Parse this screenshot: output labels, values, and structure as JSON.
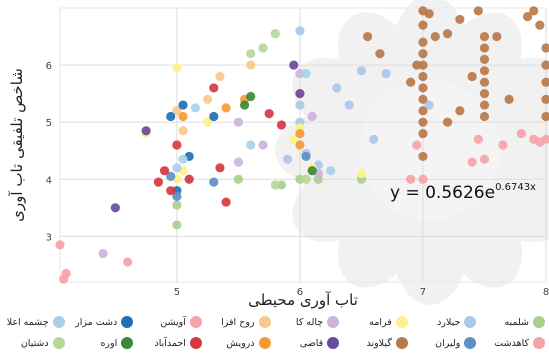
{
  "chart_data": {
    "type": "scatter",
    "title": "",
    "xlabel": "تاب آوری محیطی",
    "ylabel": "شاخص تلفیقی تاب آوری",
    "xlim": [
      4.05,
      8.0
    ],
    "ylim": [
      2.2,
      7.0
    ],
    "xticks": [
      5,
      6,
      7,
      8
    ],
    "yticks": [
      3,
      4,
      5,
      6
    ],
    "grid": true,
    "trendline": {
      "type": "exponential",
      "a": 0.5626,
      "b": 0.6743,
      "label_base": "y = 0.5626e",
      "label_exp": "0.6743x"
    },
    "series": [
      {
        "name": "شلمبه",
        "color": "#a8d08d",
        "points": [
          [
            5.0,
            3.55
          ],
          [
            5.0,
            3.2
          ],
          [
            5.85,
            3.9
          ],
          [
            6.5,
            4.0
          ],
          [
            6.0,
            4.0
          ],
          [
            5.5,
            4.0
          ],
          [
            6.15,
            4.0
          ]
        ]
      },
      {
        "name": "جیلارد",
        "color": "#a9c8e8",
        "points": [
          [
            5.9,
            4.35
          ],
          [
            6.0,
            6.6
          ],
          [
            6.0,
            5.0
          ],
          [
            6.0,
            5.3
          ],
          [
            6.3,
            5.6
          ],
          [
            6.5,
            5.9
          ],
          [
            6.6,
            4.7
          ],
          [
            6.7,
            5.85
          ],
          [
            6.05,
            4.45
          ],
          [
            6.15,
            4.25
          ],
          [
            6.4,
            5.3
          ],
          [
            7.05,
            5.3
          ]
        ]
      },
      {
        "name": "فرامه",
        "color": "#fff18a",
        "points": [
          [
            5.0,
            5.95
          ],
          [
            5.0,
            4.0
          ],
          [
            5.05,
            4.15
          ],
          [
            5.95,
            4.7
          ],
          [
            6.0,
            5.5
          ],
          [
            6.0,
            4.9
          ],
          [
            6.1,
            4.2
          ],
          [
            6.5,
            4.1
          ],
          [
            5.25,
            5.0
          ],
          [
            4.75,
            4.8
          ]
        ]
      },
      {
        "name": "چاله کا",
        "color": "#cdb4dc",
        "points": [
          [
            6.0,
            5.85
          ],
          [
            5.5,
            5.0
          ],
          [
            5.7,
            4.6
          ],
          [
            6.1,
            5.1
          ],
          [
            4.4,
            2.7
          ],
          [
            6.15,
            4.1
          ],
          [
            5.5,
            4.3
          ]
        ]
      },
      {
        "name": "روح افزا",
        "color": "#f8c98d",
        "points": [
          [
            5.0,
            5.2
          ],
          [
            5.6,
            6.0
          ],
          [
            5.25,
            5.4
          ],
          [
            5.35,
            5.8
          ],
          [
            5.05,
            4.85
          ]
        ]
      },
      {
        "name": "آویشن",
        "color": "#f5a3a8",
        "points": [
          [
            4.05,
            2.85
          ],
          [
            4.1,
            2.35
          ],
          [
            4.08,
            2.25
          ],
          [
            7.0,
            4.0
          ],
          [
            7.5,
            4.35
          ],
          [
            7.65,
            4.6
          ],
          [
            7.9,
            4.7
          ],
          [
            8.0,
            4.7
          ],
          [
            4.6,
            2.55
          ]
        ]
      },
      {
        "name": "دشت مزار",
        "color": "#1f6fb5",
        "points": [
          [
            5.0,
            3.8
          ],
          [
            5.1,
            4.4
          ],
          [
            4.95,
            5.1
          ],
          [
            5.3,
            5.1
          ],
          [
            5.05,
            5.3
          ]
        ]
      },
      {
        "name": "چشمه اعلا",
        "color": "#a8d0ea",
        "points": [
          [
            5.0,
            4.2
          ],
          [
            5.05,
            4.35
          ],
          [
            5.15,
            5.25
          ],
          [
            6.05,
            5.85
          ],
          [
            5.6,
            4.6
          ],
          [
            6.25,
            4.15
          ]
        ]
      },
      {
        "name": "کاهدشت",
        "color": "#f5a3a8",
        "points": [
          [
            6.9,
            4.0
          ],
          [
            6.95,
            4.6
          ],
          [
            7.4,
            4.3
          ],
          [
            7.45,
            4.7
          ],
          [
            7.8,
            4.8
          ],
          [
            7.95,
            4.65
          ]
        ]
      },
      {
        "name": "ولیران",
        "color": "#5a8fc8",
        "points": [
          [
            5.0,
            3.7
          ],
          [
            6.05,
            4.4
          ],
          [
            5.3,
            3.95
          ],
          [
            4.95,
            4.05
          ]
        ]
      },
      {
        "name": "گیلاوند",
        "color": "#b8794a",
        "points": [
          [
            6.9,
            5.7
          ],
          [
            6.95,
            6.0
          ],
          [
            7.0,
            6.95
          ],
          [
            7.0,
            6.7
          ],
          [
            7.0,
            6.4
          ],
          [
            7.0,
            6.2
          ],
          [
            7.0,
            6.0
          ],
          [
            7.0,
            5.8
          ],
          [
            7.0,
            5.6
          ],
          [
            7.0,
            5.4
          ],
          [
            7.0,
            5.2
          ],
          [
            7.0,
            5.0
          ],
          [
            7.0,
            4.8
          ],
          [
            7.0,
            4.4
          ],
          [
            7.05,
            6.9
          ],
          [
            7.1,
            6.5
          ],
          [
            7.2,
            6.55
          ],
          [
            7.3,
            6.8
          ],
          [
            7.45,
            6.95
          ],
          [
            7.5,
            6.5
          ],
          [
            7.5,
            6.3
          ],
          [
            7.5,
            6.1
          ],
          [
            7.5,
            5.9
          ],
          [
            7.5,
            5.7
          ],
          [
            7.5,
            5.5
          ],
          [
            7.5,
            5.3
          ],
          [
            7.5,
            5.1
          ],
          [
            7.6,
            6.5
          ],
          [
            7.85,
            6.85
          ],
          [
            7.9,
            6.95
          ],
          [
            8.0,
            6.3
          ],
          [
            8.0,
            6.0
          ],
          [
            8.0,
            5.7
          ],
          [
            8.0,
            5.4
          ],
          [
            8.0,
            5.1
          ],
          [
            6.55,
            6.5
          ],
          [
            6.65,
            6.2
          ],
          [
            7.2,
            5.0
          ],
          [
            7.3,
            5.2
          ],
          [
            7.4,
            5.8
          ],
          [
            7.7,
            5.4
          ],
          [
            7.95,
            6.7
          ]
        ]
      },
      {
        "name": "قاضی",
        "color": "#6a4a9c",
        "points": [
          [
            4.5,
            3.5
          ],
          [
            4.75,
            4.85
          ],
          [
            6.0,
            5.5
          ],
          [
            5.95,
            6.0
          ]
        ]
      },
      {
        "name": "درویش",
        "color": "#f59a3a",
        "points": [
          [
            5.05,
            5.1
          ],
          [
            5.55,
            5.4
          ],
          [
            6.0,
            4.8
          ],
          [
            6.0,
            4.6
          ],
          [
            5.4,
            5.25
          ]
        ]
      },
      {
        "name": "احمدآباد",
        "color": "#d43a3f",
        "points": [
          [
            4.9,
            4.15
          ],
          [
            4.95,
            3.8
          ],
          [
            5.0,
            4.6
          ],
          [
            5.1,
            4.0
          ],
          [
            5.3,
            5.6
          ],
          [
            5.35,
            4.2
          ],
          [
            5.4,
            3.6
          ],
          [
            5.75,
            5.15
          ],
          [
            5.85,
            4.95
          ],
          [
            4.85,
            3.95
          ]
        ]
      },
      {
        "name": "اوره",
        "color": "#3a8a3a",
        "points": [
          [
            5.6,
            5.45
          ],
          [
            5.55,
            5.3
          ],
          [
            6.1,
            4.15
          ]
        ]
      },
      {
        "name": "دشتیان",
        "color": "#b5d89a",
        "points": [
          [
            5.6,
            6.2
          ],
          [
            5.7,
            6.3
          ],
          [
            5.8,
            6.55
          ],
          [
            5.8,
            3.9
          ],
          [
            6.05,
            4.0
          ]
        ]
      }
    ]
  },
  "legend": {
    "row1": [
      {
        "label": "شلمبه",
        "color": "#a8d08d"
      },
      {
        "label": "جیلارد",
        "color": "#a9c8e8"
      },
      {
        "label": "فرامه",
        "color": "#fff18a"
      },
      {
        "label": "چاله کا",
        "color": "#cdb4dc"
      },
      {
        "label": "روح افزا",
        "color": "#f8c98d"
      },
      {
        "label": "آویشن",
        "color": "#f5a3a8"
      },
      {
        "label": "دشت مزار",
        "color": "#1f6fb5"
      },
      {
        "label": "چشمه اعلا",
        "color": "#a8d0ea"
      }
    ],
    "row2": [
      {
        "label": "کاهدشت",
        "color": "#f5a3a8"
      },
      {
        "label": "ولیران",
        "color": "#5a8fc8"
      },
      {
        "label": "گیلاوند",
        "color": "#b8794a"
      },
      {
        "label": "قاضی",
        "color": "#6a4a9c"
      },
      {
        "label": "درویش",
        "color": "#f59a3a"
      },
      {
        "label": "احمدآباد",
        "color": "#d43a3f"
      },
      {
        "label": "اوره",
        "color": "#3a8a3a"
      },
      {
        "label": "دشتیان",
        "color": "#b5d89a"
      }
    ]
  }
}
